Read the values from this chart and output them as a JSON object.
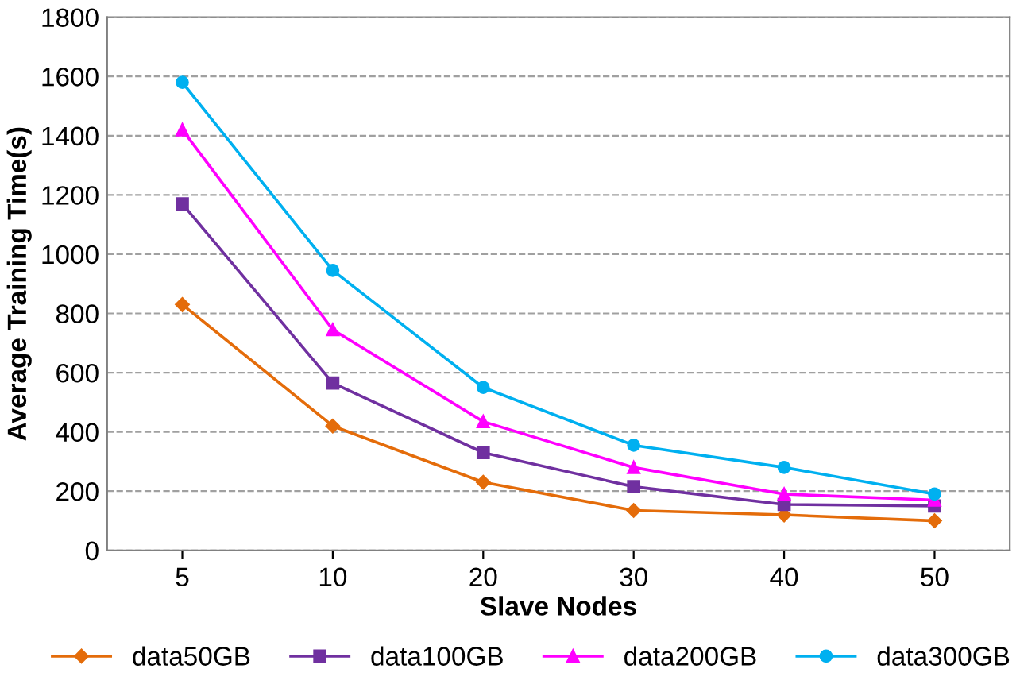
{
  "chart_data": {
    "type": "line",
    "xlabel": "Slave Nodes",
    "ylabel": "Average Training Time(s)",
    "categories": [
      "5",
      "10",
      "20",
      "30",
      "40",
      "50"
    ],
    "series": [
      {
        "name": "data50GB",
        "color": "#e46c0a",
        "marker": "diamond",
        "values": [
          830,
          420,
          230,
          135,
          120,
          100
        ]
      },
      {
        "name": "data100GB",
        "color": "#7030a0",
        "marker": "square",
        "values": [
          1170,
          565,
          330,
          215,
          155,
          150
        ]
      },
      {
        "name": "data200GB",
        "color": "#ff00ff",
        "marker": "triangle",
        "values": [
          1420,
          745,
          435,
          280,
          190,
          170
        ]
      },
      {
        "name": "data300GB",
        "color": "#00b0f0",
        "marker": "circle",
        "values": [
          1580,
          945,
          550,
          355,
          280,
          190
        ]
      }
    ],
    "ylim": [
      0,
      1800
    ],
    "yticks": [
      0,
      200,
      400,
      600,
      800,
      1000,
      1200,
      1400,
      1600,
      1800
    ],
    "grid": "y",
    "legend": "bottom",
    "line_style": "solid"
  }
}
